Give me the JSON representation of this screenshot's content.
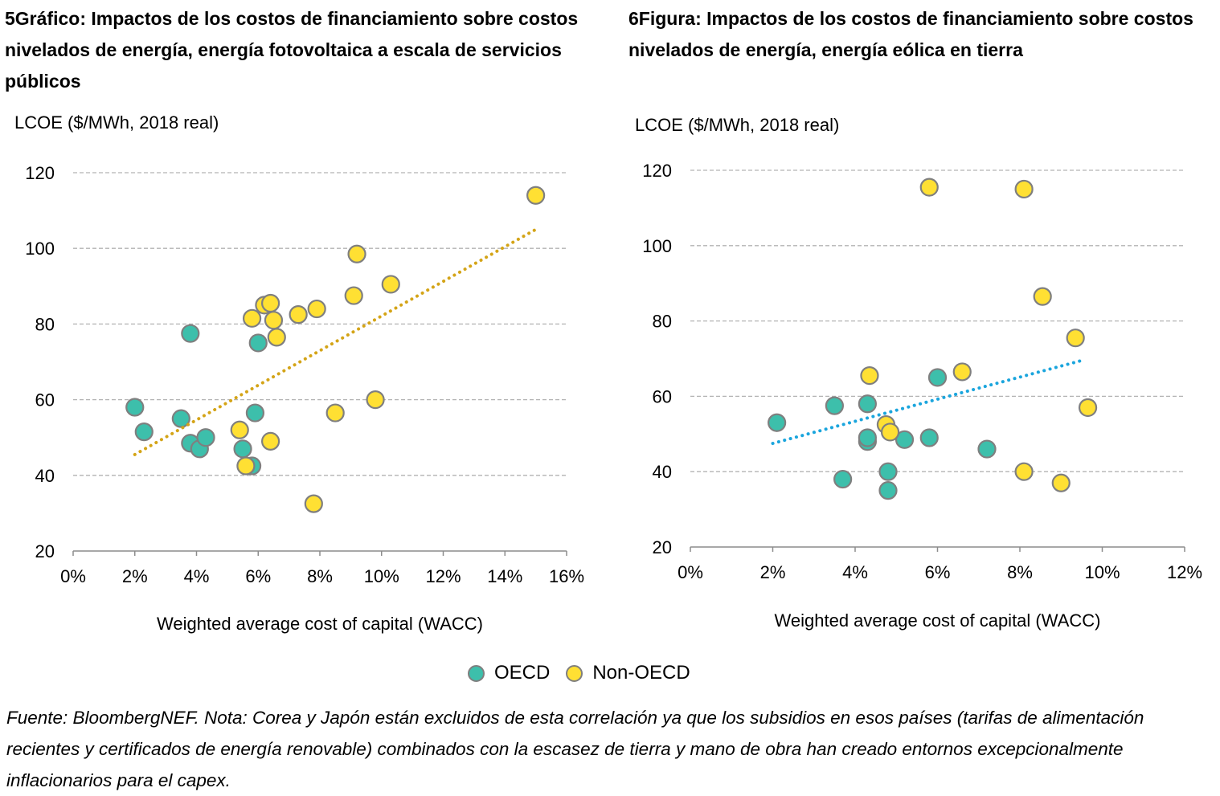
{
  "colors": {
    "oecd": "#3dbfab",
    "non_oecd": "#ffe033",
    "marker_edge": "#7f7f7f",
    "trend_left": "#d4a417",
    "trend_right": "#1aa5dd",
    "grid": "#b3b3b3"
  },
  "legend": {
    "oecd_label": "OECD",
    "non_oecd_label": "Non-OECD"
  },
  "footnote": "Fuente: BloombergNEF. Nota: Corea y Japón están excluidos de esta correlación ya que los subsidios en esos países (tarifas de alimentación recientes y certificados de energía renovable) combinados con la escasez de tierra y mano de obra han creado entornos excepcionalmente inflacionarios para el capex.",
  "chart_data": [
    {
      "type": "scatter",
      "title": "5Gráfico: Impactos de los costos de financiamiento sobre costos nivelados de energía, energía fotovoltaica a escala de servicios públicos",
      "ylabel": "LCOE ($/MWh,  2018 real)",
      "xlabel": "Weighted average cost of capital (WACC)",
      "xlim": [
        0,
        16
      ],
      "ylim": [
        20,
        120
      ],
      "xticks": [
        0,
        2,
        4,
        6,
        8,
        10,
        12,
        14,
        16
      ],
      "xtick_labels": [
        "0%",
        "2%",
        "4%",
        "6%",
        "8%",
        "10%",
        "12%",
        "14%",
        "16%"
      ],
      "yticks": [
        20,
        40,
        60,
        80,
        100,
        120
      ],
      "ytick_labels": [
        "20",
        "40",
        "60",
        "80",
        "100",
        "120"
      ],
      "grid": "horizontal dashed",
      "series": [
        {
          "name": "OECD",
          "points": [
            [
              2.0,
              58.0
            ],
            [
              2.3,
              51.5
            ],
            [
              3.5,
              55.0
            ],
            [
              3.8,
              77.5
            ],
            [
              3.8,
              48.5
            ],
            [
              4.1,
              47.0
            ],
            [
              4.3,
              50.0
            ],
            [
              5.5,
              47.0
            ],
            [
              5.8,
              42.5
            ],
            [
              5.9,
              56.5
            ],
            [
              6.0,
              75.0
            ]
          ]
        },
        {
          "name": "Non-OECD",
          "points": [
            [
              5.4,
              52.0
            ],
            [
              5.6,
              42.5
            ],
            [
              5.8,
              81.5
            ],
            [
              6.2,
              85.0
            ],
            [
              6.4,
              85.5
            ],
            [
              6.5,
              81.0
            ],
            [
              6.6,
              76.5
            ],
            [
              6.4,
              49.0
            ],
            [
              7.3,
              82.5
            ],
            [
              7.9,
              84.0
            ],
            [
              7.8,
              32.5
            ],
            [
              8.5,
              56.5
            ],
            [
              9.1,
              87.5
            ],
            [
              9.2,
              98.5
            ],
            [
              9.8,
              60.0
            ],
            [
              10.3,
              90.5
            ],
            [
              15.0,
              114.0
            ]
          ]
        }
      ],
      "trendline": {
        "x": [
          2.0,
          15.0
        ],
        "y": [
          45.5,
          105.0
        ]
      }
    },
    {
      "type": "scatter",
      "title": "6Figura: Impactos de los costos de financiamiento sobre costos nivelados de energía, energía eólica en tierra",
      "ylabel": "LCOE ($/MWh,  2018 real)",
      "xlabel": "Weighted average cost of capital (WACC)",
      "xlim": [
        0,
        12
      ],
      "ylim": [
        20,
        120
      ],
      "xticks": [
        0,
        2,
        4,
        6,
        8,
        10,
        12
      ],
      "xtick_labels": [
        "0%",
        "2%",
        "4%",
        "6%",
        "8%",
        "10%",
        "12%"
      ],
      "yticks": [
        20,
        40,
        60,
        80,
        100,
        120
      ],
      "ytick_labels": [
        "20",
        "40",
        "60",
        "80",
        "100",
        "120"
      ],
      "grid": "horizontal dashed",
      "series": [
        {
          "name": "OECD",
          "points": [
            [
              2.1,
              53.0
            ],
            [
              3.5,
              57.5
            ],
            [
              3.7,
              38.0
            ],
            [
              4.3,
              58.0
            ],
            [
              4.3,
              48.0
            ],
            [
              4.3,
              49.0
            ],
            [
              4.8,
              40.0
            ],
            [
              4.8,
              35.0
            ],
            [
              5.2,
              48.5
            ],
            [
              5.8,
              49.0
            ],
            [
              6.0,
              65.0
            ],
            [
              7.2,
              46.0
            ]
          ]
        },
        {
          "name": "Non-OECD",
          "points": [
            [
              4.35,
              65.5
            ],
            [
              4.75,
              52.5
            ],
            [
              4.85,
              50.5
            ],
            [
              5.8,
              115.5
            ],
            [
              6.6,
              66.5
            ],
            [
              8.1,
              115.0
            ],
            [
              8.1,
              40.0
            ],
            [
              8.55,
              86.5
            ],
            [
              9.0,
              37.0
            ],
            [
              9.35,
              75.5
            ],
            [
              9.65,
              57.0
            ]
          ]
        }
      ],
      "trendline": {
        "x": [
          2.0,
          9.5
        ],
        "y": [
          47.5,
          69.5
        ]
      }
    }
  ]
}
